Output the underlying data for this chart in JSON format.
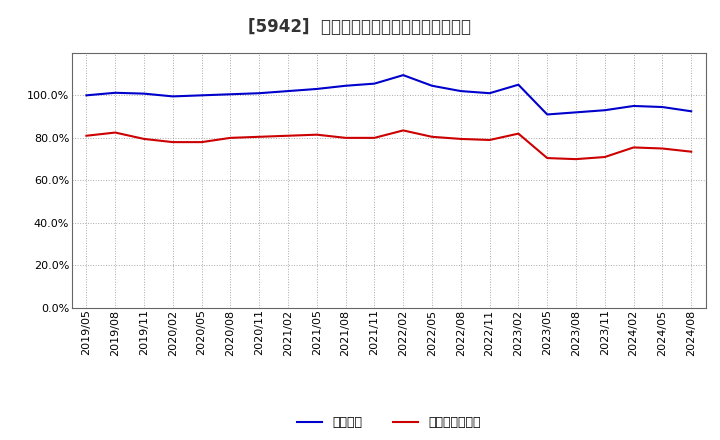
{
  "title": "[5942]  固定比率、固定長期適合率の推移",
  "x_labels": [
    "2019/05",
    "2019/08",
    "2019/11",
    "2020/02",
    "2020/05",
    "2020/08",
    "2020/11",
    "2021/02",
    "2021/05",
    "2021/08",
    "2021/11",
    "2022/02",
    "2022/05",
    "2022/08",
    "2022/11",
    "2023/02",
    "2023/05",
    "2023/08",
    "2023/11",
    "2024/02",
    "2024/05",
    "2024/08"
  ],
  "fixed_ratio": [
    100.0,
    101.2,
    100.8,
    99.5,
    100.0,
    100.5,
    101.0,
    102.0,
    103.0,
    104.5,
    105.5,
    109.5,
    104.5,
    102.0,
    101.0,
    105.0,
    91.0,
    92.0,
    93.0,
    95.0,
    94.5,
    92.5
  ],
  "fixed_long_ratio": [
    81.0,
    82.5,
    79.5,
    78.0,
    78.0,
    80.0,
    80.5,
    81.0,
    81.5,
    80.0,
    80.0,
    83.5,
    80.5,
    79.5,
    79.0,
    82.0,
    70.5,
    70.0,
    71.0,
    75.5,
    75.0,
    73.5
  ],
  "blue_color": "#0000cc",
  "red_color": "#cc0000",
  "bg_color": "#ffffff",
  "plot_bg_color": "#ffffff",
  "grid_color": "#aaaaaa",
  "ylim": [
    0,
    120
  ],
  "yticks": [
    0,
    20,
    40,
    60,
    80,
    100
  ],
  "legend_labels": [
    "固定比率",
    "固定長期適合率"
  ],
  "title_fontsize": 12,
  "tick_fontsize": 8,
  "legend_fontsize": 9
}
